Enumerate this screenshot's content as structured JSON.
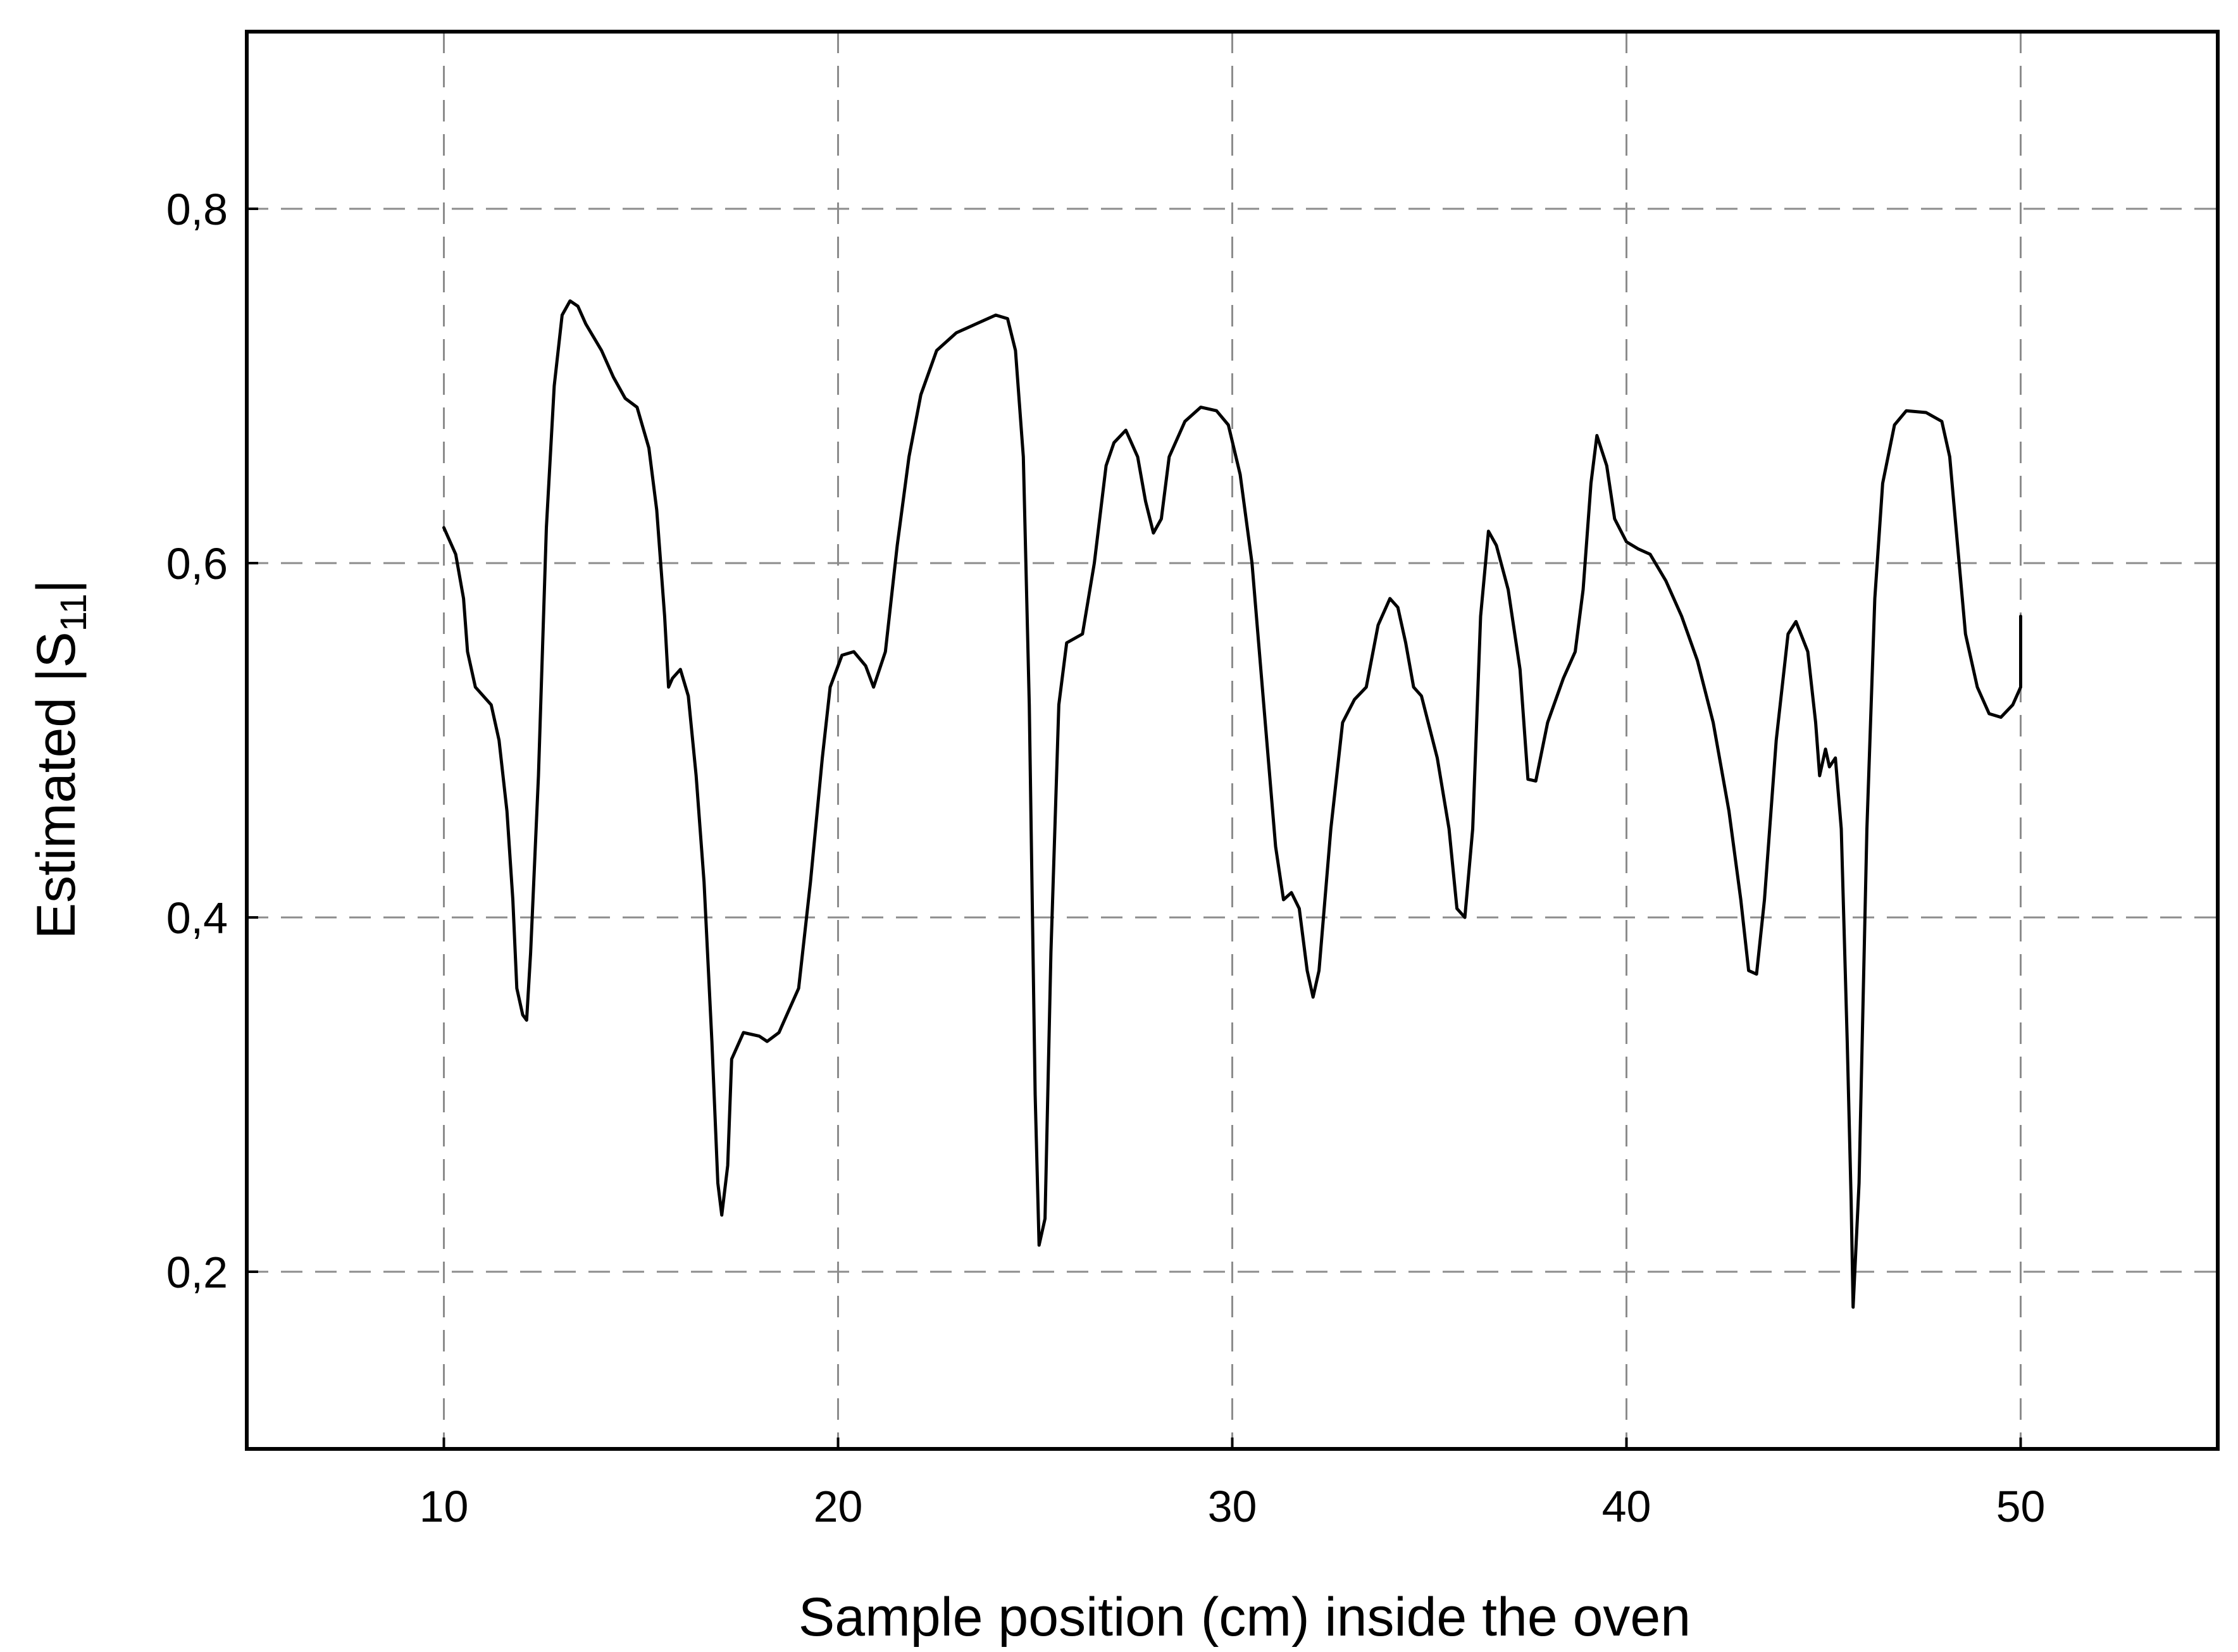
{
  "chart_data": {
    "type": "line",
    "xlabel": "Sample position (cm) inside the oven",
    "ylabel_main": "Estimated |S",
    "ylabel_sub": "11",
    "ylabel_end": "|",
    "xlim": [
      5,
      55
    ],
    "ylim": [
      0.1,
      0.9
    ],
    "x_ticks": [
      10,
      20,
      30,
      40,
      50
    ],
    "x_tick_labels": [
      "10",
      "20",
      "30",
      "40",
      "50"
    ],
    "y_ticks": [
      0.2,
      0.4,
      0.6,
      0.8
    ],
    "y_tick_labels": [
      "0,2",
      "0,4",
      "0,6",
      "0,8"
    ],
    "grid": true,
    "series": [
      {
        "color": "#000000",
        "points": [
          [
            10.0,
            0.62
          ],
          [
            10.3,
            0.605
          ],
          [
            10.5,
            0.58
          ],
          [
            10.6,
            0.55
          ],
          [
            10.8,
            0.53
          ],
          [
            11.0,
            0.525
          ],
          [
            11.2,
            0.52
          ],
          [
            11.4,
            0.5
          ],
          [
            11.6,
            0.46
          ],
          [
            11.75,
            0.41
          ],
          [
            11.85,
            0.36
          ],
          [
            12.0,
            0.345
          ],
          [
            12.1,
            0.342
          ],
          [
            12.2,
            0.38
          ],
          [
            12.4,
            0.48
          ],
          [
            12.6,
            0.62
          ],
          [
            12.8,
            0.7
          ],
          [
            13.0,
            0.74
          ],
          [
            13.2,
            0.748
          ],
          [
            13.4,
            0.745
          ],
          [
            13.6,
            0.735
          ],
          [
            14.0,
            0.72
          ],
          [
            14.3,
            0.705
          ],
          [
            14.6,
            0.693
          ],
          [
            14.9,
            0.688
          ],
          [
            15.2,
            0.665
          ],
          [
            15.4,
            0.63
          ],
          [
            15.6,
            0.57
          ],
          [
            15.7,
            0.53
          ],
          [
            15.8,
            0.535
          ],
          [
            16.0,
            0.54
          ],
          [
            16.2,
            0.525
          ],
          [
            16.4,
            0.48
          ],
          [
            16.6,
            0.42
          ],
          [
            16.8,
            0.33
          ],
          [
            16.95,
            0.25
          ],
          [
            17.05,
            0.232
          ],
          [
            17.2,
            0.26
          ],
          [
            17.3,
            0.32
          ],
          [
            17.6,
            0.335
          ],
          [
            18.0,
            0.333
          ],
          [
            18.2,
            0.33
          ],
          [
            18.5,
            0.335
          ],
          [
            18.7,
            0.345
          ],
          [
            19.0,
            0.36
          ],
          [
            19.3,
            0.42
          ],
          [
            19.6,
            0.49
          ],
          [
            19.8,
            0.53
          ],
          [
            20.1,
            0.548
          ],
          [
            20.4,
            0.55
          ],
          [
            20.7,
            0.542
          ],
          [
            20.9,
            0.53
          ],
          [
            21.2,
            0.55
          ],
          [
            21.5,
            0.61
          ],
          [
            21.8,
            0.66
          ],
          [
            22.1,
            0.695
          ],
          [
            22.5,
            0.72
          ],
          [
            23.0,
            0.73
          ],
          [
            23.5,
            0.735
          ],
          [
            24.0,
            0.74
          ],
          [
            24.3,
            0.738
          ],
          [
            24.5,
            0.72
          ],
          [
            24.7,
            0.66
          ],
          [
            24.85,
            0.52
          ],
          [
            25.0,
            0.3
          ],
          [
            25.1,
            0.215
          ],
          [
            25.25,
            0.23
          ],
          [
            25.4,
            0.38
          ],
          [
            25.6,
            0.52
          ],
          [
            25.8,
            0.555
          ],
          [
            26.2,
            0.56
          ],
          [
            26.5,
            0.6
          ],
          [
            26.8,
            0.655
          ],
          [
            27.0,
            0.668
          ],
          [
            27.3,
            0.675
          ],
          [
            27.6,
            0.66
          ],
          [
            27.8,
            0.635
          ],
          [
            28.0,
            0.617
          ],
          [
            28.2,
            0.625
          ],
          [
            28.4,
            0.66
          ],
          [
            28.8,
            0.68
          ],
          [
            29.2,
            0.688
          ],
          [
            29.6,
            0.686
          ],
          [
            29.9,
            0.678
          ],
          [
            30.2,
            0.65
          ],
          [
            30.5,
            0.6
          ],
          [
            30.8,
            0.52
          ],
          [
            31.1,
            0.44
          ],
          [
            31.3,
            0.41
          ],
          [
            31.5,
            0.414
          ],
          [
            31.7,
            0.405
          ],
          [
            31.9,
            0.37
          ],
          [
            32.05,
            0.355
          ],
          [
            32.2,
            0.37
          ],
          [
            32.5,
            0.45
          ],
          [
            32.8,
            0.51
          ],
          [
            33.1,
            0.523
          ],
          [
            33.4,
            0.53
          ],
          [
            33.7,
            0.565
          ],
          [
            34.0,
            0.58
          ],
          [
            34.2,
            0.575
          ],
          [
            34.4,
            0.555
          ],
          [
            34.6,
            0.53
          ],
          [
            34.8,
            0.525
          ],
          [
            35.2,
            0.49
          ],
          [
            35.5,
            0.45
          ],
          [
            35.7,
            0.405
          ],
          [
            35.9,
            0.4
          ],
          [
            36.1,
            0.45
          ],
          [
            36.3,
            0.57
          ],
          [
            36.5,
            0.618
          ],
          [
            36.7,
            0.61
          ],
          [
            37.0,
            0.585
          ],
          [
            37.3,
            0.54
          ],
          [
            37.5,
            0.478
          ],
          [
            37.7,
            0.477
          ],
          [
            38.0,
            0.51
          ],
          [
            38.4,
            0.535
          ],
          [
            38.7,
            0.55
          ],
          [
            38.9,
            0.585
          ],
          [
            39.1,
            0.645
          ],
          [
            39.25,
            0.672
          ],
          [
            39.5,
            0.655
          ],
          [
            39.7,
            0.625
          ],
          [
            40.0,
            0.612
          ],
          [
            40.3,
            0.608
          ],
          [
            40.6,
            0.605
          ],
          [
            41.0,
            0.59
          ],
          [
            41.4,
            0.57
          ],
          [
            41.8,
            0.545
          ],
          [
            42.2,
            0.51
          ],
          [
            42.6,
            0.46
          ],
          [
            42.9,
            0.41
          ],
          [
            43.1,
            0.37
          ],
          [
            43.3,
            0.368
          ],
          [
            43.5,
            0.41
          ],
          [
            43.8,
            0.5
          ],
          [
            44.1,
            0.56
          ],
          [
            44.3,
            0.567
          ],
          [
            44.6,
            0.55
          ],
          [
            44.8,
            0.51
          ],
          [
            44.9,
            0.48
          ],
          [
            45.05,
            0.495
          ],
          [
            45.15,
            0.485
          ],
          [
            45.3,
            0.49
          ],
          [
            45.45,
            0.45
          ],
          [
            45.6,
            0.33
          ],
          [
            45.7,
            0.24
          ],
          [
            45.75,
            0.18
          ],
          [
            45.9,
            0.25
          ],
          [
            46.1,
            0.45
          ],
          [
            46.3,
            0.58
          ],
          [
            46.5,
            0.645
          ],
          [
            46.8,
            0.678
          ],
          [
            47.1,
            0.686
          ],
          [
            47.6,
            0.685
          ],
          [
            48.0,
            0.68
          ],
          [
            48.2,
            0.66
          ],
          [
            48.4,
            0.61
          ],
          [
            48.6,
            0.56
          ],
          [
            48.9,
            0.53
          ],
          [
            49.2,
            0.515
          ],
          [
            49.5,
            0.513
          ],
          [
            49.8,
            0.52
          ],
          [
            50.0,
            0.53
          ],
          [
            50.0,
            0.57
          ]
        ]
      }
    ]
  }
}
